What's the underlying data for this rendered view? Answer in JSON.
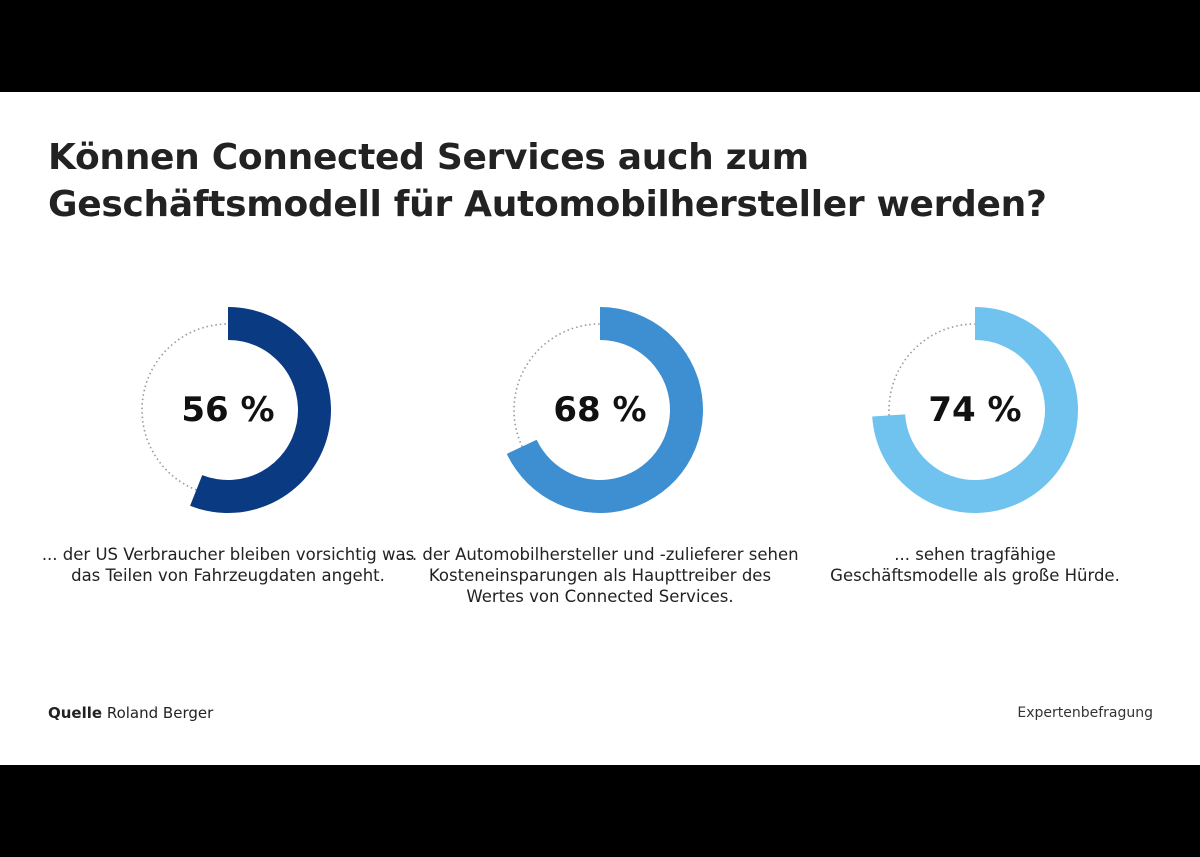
{
  "title_line1": "Können Connected Services auch zum",
  "title_line2": "Geschäftsmodell für Automobilhersteller werden?",
  "chart_data": [
    {
      "type": "pie",
      "values": [
        56
      ],
      "label": "56 %",
      "caption": "... der US Verbraucher bleiben vorsichtig was das Teilen von Fahrzeugdaten angeht.",
      "color": "#0a3a82"
    },
    {
      "type": "pie",
      "values": [
        68
      ],
      "label": "68 %",
      "caption": "... der Automobilhersteller und -zulieferer sehen Kosteneinsparungen als Haupttreiber des Wertes von Connected Services.",
      "color": "#3d8fd1"
    },
    {
      "type": "pie",
      "values": [
        74
      ],
      "label": "74 %",
      "caption": "... sehen tragfähige Geschäftsmodelle als große Hürde.",
      "color": "#6fc3ee"
    }
  ],
  "source_label": "Quelle",
  "source_value": "Roland Berger",
  "note": "Expertenbefragung"
}
